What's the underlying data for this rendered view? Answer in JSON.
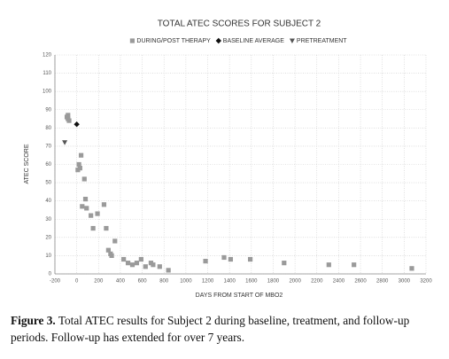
{
  "chart_data": {
    "type": "scatter",
    "title": "TOTAL ATEC SCORES FOR SUBJECT 2",
    "x_label": "DAYS FROM START OF MBO2",
    "y_label": "ATEC SCORE",
    "xlim": [
      -200,
      3200
    ],
    "xticks": [
      -200,
      0,
      200,
      400,
      600,
      800,
      1000,
      1200,
      1400,
      1600,
      1800,
      2000,
      2200,
      2400,
      2600,
      2800,
      3000,
      3200
    ],
    "ylim": [
      0,
      120
    ],
    "yticks": [
      0,
      10,
      20,
      30,
      40,
      50,
      60,
      70,
      80,
      90,
      100,
      110,
      120
    ],
    "grid": true,
    "series": [
      {
        "name": "DURING/POST THERAPY",
        "color": "#9a9a9a",
        "marker": "square",
        "x": [
          -90,
          -80,
          -70,
          -80,
          40,
          20,
          30,
          10,
          70,
          80,
          50,
          90,
          130,
          190,
          150,
          250,
          270,
          350,
          290,
          310,
          320,
          430,
          470,
          510,
          550,
          590,
          630,
          680,
          700,
          760,
          840,
          1180,
          1350,
          1410,
          1590,
          1900,
          2310,
          2540,
          3070
        ],
        "y": [
          86,
          85,
          84,
          87,
          65,
          60,
          58,
          57,
          52,
          41,
          37,
          36,
          32,
          33,
          25,
          38,
          25,
          18,
          13,
          11,
          10,
          8,
          6,
          5,
          6,
          8,
          4,
          6,
          5,
          4,
          2,
          7,
          9,
          8,
          8,
          6,
          5,
          5,
          3
        ]
      },
      {
        "name": "BASELINE AVERAGE",
        "color": "#111111",
        "marker": "diamond",
        "x": [
          0
        ],
        "y": [
          82
        ]
      },
      {
        "name": "PRETREATMENT",
        "color": "#555555",
        "marker": "triangle",
        "x": [
          -110
        ],
        "y": [
          72
        ]
      }
    ]
  },
  "caption": {
    "label": "Figure 3.",
    "text": "Total ATEC results for Subject 2 during baseline, treatment, and follow-up periods. Follow-up has extended for over 7 years."
  }
}
